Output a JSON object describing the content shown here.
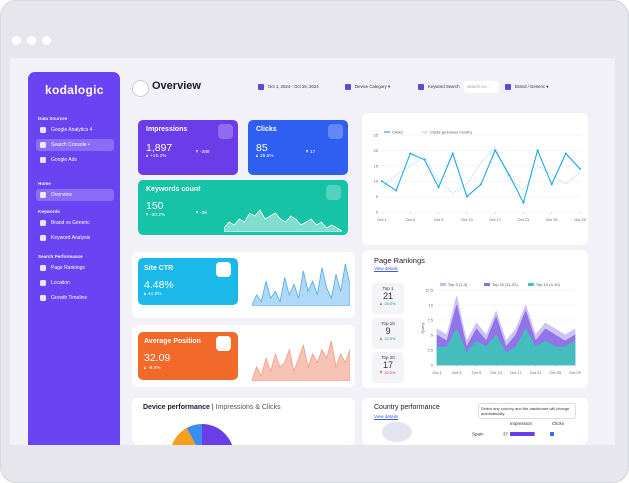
{
  "sidebar": {
    "logo": "kodalogic",
    "sections": [
      {
        "title": "Data Sources",
        "items": [
          "Google Analytics 4",
          "Search Console •",
          "Google Ads"
        ]
      },
      {
        "title": "Home",
        "items": [
          "Overview"
        ]
      },
      {
        "title": "Keywords",
        "items": [
          "Brand vs Generic",
          "Keyword Analysis"
        ]
      },
      {
        "title": "Search Performance",
        "items": [
          "Page Rankings",
          "Location",
          "Growth Timeline"
        ]
      }
    ]
  },
  "header": {
    "title": "Overview",
    "filters": [
      "Oct 1, 2024 - Oct 15, 2024",
      "Device Category",
      "Keyword Search",
      "Brand / Generic"
    ],
    "search_placeholder": "search co..."
  },
  "kpis": [
    {
      "label": "Impressions",
      "value": "1,897",
      "change": "+15.2%",
      "delta": "-288"
    },
    {
      "label": "Clicks",
      "value": "85",
      "change": "25.5%",
      "delta": "17"
    },
    {
      "label": "Keywords count",
      "value": "150",
      "change": "-30.2%",
      "delta": "-38",
      "trend": [
        4,
        6,
        5,
        7,
        6,
        9,
        8,
        10,
        7,
        8,
        9,
        7,
        6,
        8,
        7,
        5,
        6,
        7,
        5,
        6,
        4,
        5,
        4,
        3
      ]
    },
    {
      "label": "Site CTR",
      "value": "4.48%",
      "change": "41.0%",
      "trend": [
        2,
        5,
        3,
        9,
        4,
        6,
        3,
        10,
        5,
        8,
        4,
        12,
        6,
        9,
        5,
        13,
        7,
        4,
        11,
        6,
        14,
        8
      ]
    },
    {
      "label": "Average Position",
      "value": "32.09",
      "change": "-9.6%",
      "trend": [
        6,
        9,
        7,
        11,
        8,
        12,
        9,
        10,
        13,
        8,
        11,
        14,
        9,
        12,
        10,
        13,
        11,
        15,
        9,
        12,
        10,
        13
      ]
    }
  ],
  "clicks_chart": {
    "type": "line",
    "x": [
      1,
      3,
      5,
      7,
      9,
      11,
      13,
      15,
      17,
      19,
      21,
      23,
      25,
      27,
      29
    ],
    "series": [
      {
        "name": "Clicks",
        "color": "#1aa7e8",
        "values": [
          10,
          7,
          19,
          17,
          8,
          19,
          5,
          9,
          20,
          12,
          3,
          20,
          9,
          19,
          14
        ]
      },
      {
        "name": "Clicks (previous month)",
        "color": "#a9dcef",
        "values": [
          8,
          12,
          15,
          18,
          10,
          6,
          9,
          16,
          21,
          11,
          7,
          15,
          12,
          9,
          13
        ]
      }
    ],
    "xlim": [
      1,
      29
    ],
    "xticks": [
      {
        "value": 1,
        "label": "Oct 1"
      },
      {
        "value": 5,
        "label": "Oct 5"
      },
      {
        "value": 9,
        "label": "Oct 9"
      },
      {
        "value": 13,
        "label": "Oct 13"
      },
      {
        "value": 17,
        "label": "Oct 17"
      },
      {
        "value": 21,
        "label": "Oct 21"
      },
      {
        "value": 25,
        "label": "Oct 25"
      },
      {
        "value": 29,
        "label": "Oct 29"
      }
    ],
    "ylim": [
      0,
      25
    ],
    "yticks": [
      0,
      5,
      10,
      15,
      20,
      25
    ]
  },
  "page_rankings": {
    "title": "Page Rankings",
    "link": "View details",
    "summary": [
      {
        "label": "Top 1",
        "value": "21",
        "change": "15.0%"
      },
      {
        "label": "Top 10",
        "value": "9",
        "change": "12.5%"
      },
      {
        "label": "Top 20",
        "value": "17",
        "change": "10.2%"
      }
    ],
    "chart": {
      "type": "area",
      "y_label": "Query",
      "x": [
        1,
        3,
        5,
        7,
        9,
        11,
        13,
        15,
        17,
        19,
        21,
        23,
        25,
        27,
        29
      ],
      "series": [
        {
          "name": "Top 3 (1-3)",
          "color": "#c9bdf4",
          "values": [
            6,
            5,
            11.5,
            4,
            7,
            5,
            9,
            4,
            6,
            10,
            5,
            7,
            6,
            5,
            6
          ]
        },
        {
          "name": "Top 20 (11-20)",
          "color": "#8b6be6",
          "values": [
            5,
            4,
            10,
            3,
            6,
            4,
            8,
            3,
            5,
            9,
            4,
            6,
            5,
            4,
            5
          ]
        },
        {
          "name": "Top 10 (4-10)",
          "color": "#3cc7b7",
          "values": [
            3,
            3,
            6,
            2,
            4,
            3,
            5,
            2,
            3,
            6,
            3,
            4,
            3,
            3,
            4
          ]
        }
      ],
      "xlim": [
        1,
        29
      ],
      "xticks": [
        {
          "value": 1,
          "label": "Oct 1"
        },
        {
          "value": 5,
          "label": "Oct 5"
        },
        {
          "value": 9,
          "label": "Oct 9"
        },
        {
          "value": 13,
          "label": "Oct 13"
        },
        {
          "value": 17,
          "label": "Oct 17"
        },
        {
          "value": 21,
          "label": "Oct 21"
        },
        {
          "value": 25,
          "label": "Oct 25"
        },
        {
          "value": 29,
          "label": "Oct 29"
        }
      ],
      "ylim": [
        0,
        12.5
      ],
      "yticks": [
        0,
        2.5,
        5,
        7.5,
        10,
        12.5
      ]
    }
  },
  "device_performance": {
    "title": "Device performance",
    "subtitle": "Impressions & Clicks",
    "chart": {
      "type": "pie",
      "values": [
        47,
        45,
        8
      ],
      "colors": [
        "#6a3de8",
        "#f5a01e",
        "#3b8df0"
      ]
    }
  },
  "country_performance": {
    "title": "Country performance",
    "link": "View details",
    "note": "Select any country and the dashboard will change automatically.",
    "columns": [
      "Impression",
      "Clicks"
    ],
    "rows": [
      {
        "country": "Spain",
        "impressions": 37,
        "clicks": 6
      }
    ],
    "xlim": [
      0,
      45
    ]
  }
}
